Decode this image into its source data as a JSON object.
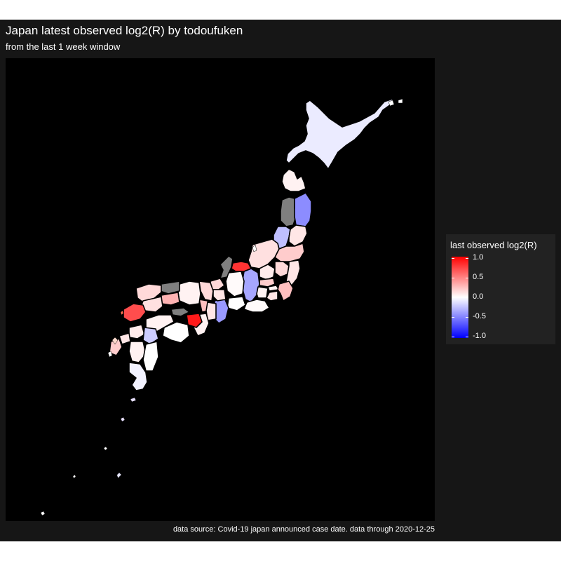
{
  "title": "Japan latest observed log2(R) by todoufuken",
  "subtitle": "from the last 1 week window",
  "caption": "data source: Covid-19 japan announced case date. data through 2020-12-25",
  "legend": {
    "title": "last observed log2(R)",
    "labels": [
      "1.0",
      "0.5",
      "0.0",
      "-0.5",
      "-1.0"
    ],
    "low_color": "#0000ff",
    "mid_color": "#ffffff",
    "high_color": "#ff0000",
    "na_color": "#7f7f7f"
  },
  "chart_data": {
    "type": "choropleth",
    "variable": "last observed log2(R)",
    "scale": {
      "min": -1.0,
      "mid": 0.0,
      "max": 1.0
    },
    "background": "#000000",
    "regions": [
      {
        "id": "hokkaido",
        "value": -0.08
      },
      {
        "id": "aomori",
        "value": 0.05
      },
      {
        "id": "akita",
        "value": null
      },
      {
        "id": "iwate",
        "value": -0.45
      },
      {
        "id": "yamagata",
        "value": -0.25
      },
      {
        "id": "miyagi",
        "value": 0.1
      },
      {
        "id": "niigata",
        "value": 0.12
      },
      {
        "id": "fukushima",
        "value": 0.2
      },
      {
        "id": "tochigi",
        "value": 0.15
      },
      {
        "id": "gunma",
        "value": 0.08
      },
      {
        "id": "ibaraki",
        "value": 0.1
      },
      {
        "id": "nagano",
        "value": -0.35
      },
      {
        "id": "saitama",
        "value": 0.2
      },
      {
        "id": "tokyo",
        "value": 0.05
      },
      {
        "id": "chiba",
        "value": 0.25
      },
      {
        "id": "kanagawa",
        "value": 0.1
      },
      {
        "id": "yamanashi",
        "value": 0.05
      },
      {
        "id": "toyama",
        "value": 0.8
      },
      {
        "id": "ishikawa",
        "value": null
      },
      {
        "id": "fukui",
        "value": 0.15
      },
      {
        "id": "gifu",
        "value": 0.02
      },
      {
        "id": "shizuoka",
        "value": 0.02
      },
      {
        "id": "aichi",
        "value": 0.0
      },
      {
        "id": "mie",
        "value": -0.4
      },
      {
        "id": "shiga",
        "value": 0.1
      },
      {
        "id": "kyoto",
        "value": 0.15
      },
      {
        "id": "osaka",
        "value": 0.25
      },
      {
        "id": "hyogo",
        "value": 0.05
      },
      {
        "id": "nara",
        "value": 0.1
      },
      {
        "id": "wakayama",
        "value": 0.05
      },
      {
        "id": "tottori",
        "value": null
      },
      {
        "id": "shimane",
        "value": 0.15
      },
      {
        "id": "okayama",
        "value": 0.3
      },
      {
        "id": "hiroshima",
        "value": 0.12
      },
      {
        "id": "yamaguchi",
        "value": 0.7
      },
      {
        "id": "tokushima",
        "value": 0.9
      },
      {
        "id": "kagawa",
        "value": null
      },
      {
        "id": "ehime",
        "value": 0.05
      },
      {
        "id": "kochi",
        "value": 0.0
      },
      {
        "id": "fukuoka",
        "value": 0.08
      },
      {
        "id": "saga",
        "value": 0.1
      },
      {
        "id": "nagasaki",
        "value": 0.2
      },
      {
        "id": "kumamoto",
        "value": 0.05
      },
      {
        "id": "oita",
        "value": -0.2
      },
      {
        "id": "miyazaki",
        "value": 0.0
      },
      {
        "id": "kagoshima",
        "value": -0.05
      },
      {
        "id": "okinawa",
        "value": -0.1
      }
    ]
  }
}
